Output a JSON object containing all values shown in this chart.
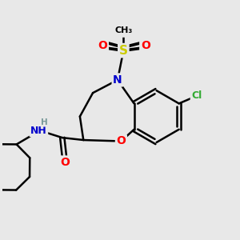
{
  "bg_color": "#e8e8e8",
  "atom_colors": {
    "C": "#000000",
    "N": "#0000cc",
    "O": "#ff0000",
    "S": "#cccc00",
    "Cl": "#33aa33",
    "H": "#7a9a9a"
  },
  "bond_color": "#000000",
  "bond_width": 1.8,
  "figsize": [
    3.0,
    3.0
  ],
  "dpi": 100
}
